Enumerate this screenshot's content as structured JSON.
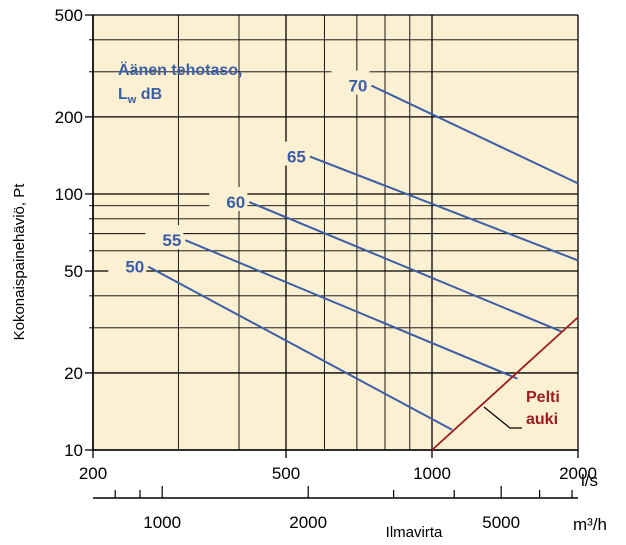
{
  "chart_data": {
    "type": "line",
    "x_scale": "log",
    "y_scale": "log",
    "xlim": [
      200,
      2000
    ],
    "ylim": [
      10,
      500
    ],
    "grid": true,
    "background_color": "#fbf0d2",
    "line_color": "#3c5ea6",
    "annotation_color": "#9e1c22",
    "ylabel": "Kokonaispainehäviö, Pt",
    "xlabel": "Ilmavirta",
    "x_unit": "l/s",
    "x2_unit": "m³/h",
    "x_ticks": [
      200,
      500,
      1000,
      2000
    ],
    "x_tick_labels": [
      "200",
      "500",
      "1000",
      "2000"
    ],
    "x2_ticks": [
      1000,
      2000,
      5000
    ],
    "x2_tick_labels": [
      "1000",
      "2000",
      "5000"
    ],
    "y_ticks": [
      10,
      20,
      50,
      100,
      200,
      500
    ],
    "y_tick_labels": [
      "10",
      "20",
      "50",
      "100",
      "200",
      "500"
    ],
    "legend_title_line1": "Äänen tehotaso,",
    "legend_title_line2": "L",
    "legend_title_sub": "w",
    "legend_title_unit": " dB",
    "series": [
      {
        "name": "50",
        "x": [
          260,
          1100
        ],
        "y": [
          52,
          12
        ]
      },
      {
        "name": "55",
        "x": [
          310,
          1500
        ],
        "y": [
          66,
          19
        ]
      },
      {
        "name": "60",
        "x": [
          420,
          1850
        ],
        "y": [
          93,
          29
        ]
      },
      {
        "name": "65",
        "x": [
          560,
          2000
        ],
        "y": [
          140,
          55
        ]
      },
      {
        "name": "70",
        "x": [
          750,
          2000
        ],
        "y": [
          265,
          110
        ]
      }
    ],
    "annotation": {
      "text_line1": "Pelti",
      "text_line2": "auki",
      "x": [
        1000,
        2000
      ],
      "y": [
        10,
        33
      ]
    }
  }
}
